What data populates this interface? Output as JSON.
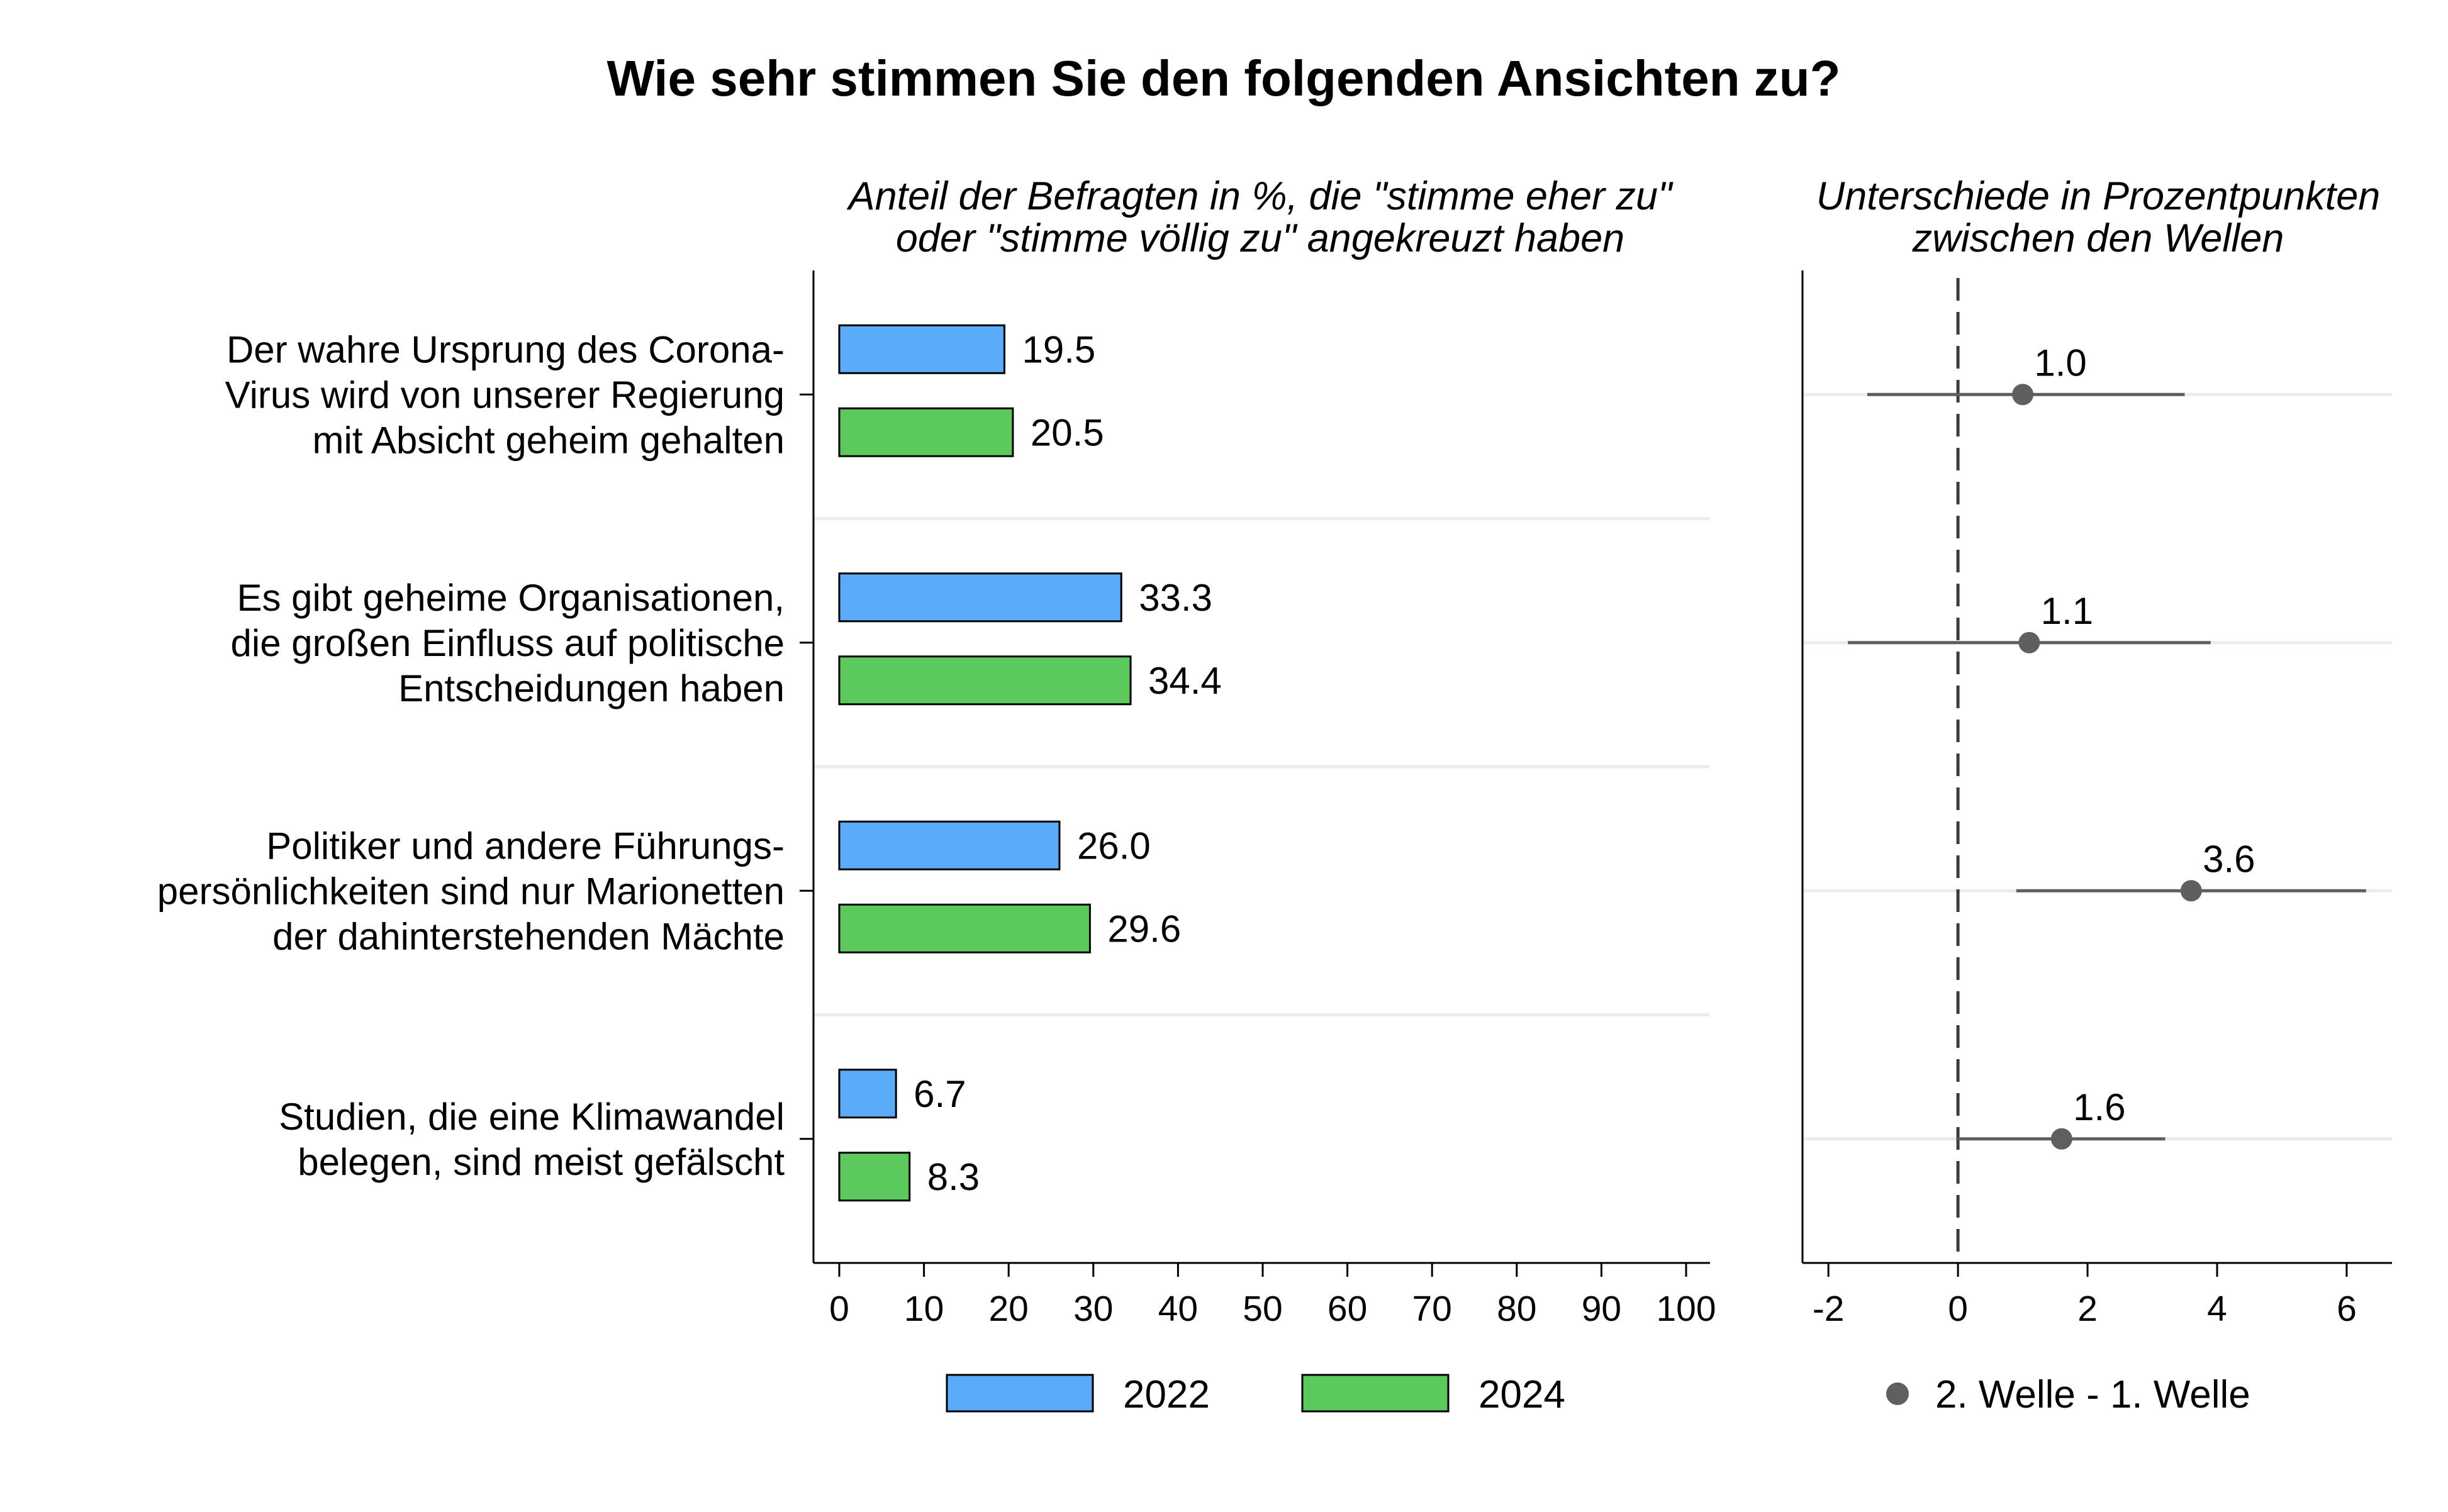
{
  "chart_data": {
    "type": "bar",
    "title": "Wie sehr stimmen Sie den folgenden Ansichten zu?",
    "panels": [
      {
        "type": "bar",
        "orientation": "horizontal",
        "subtitle_lines": [
          "Anteil der Befragten in %, die \"stimme eher zu\"",
          "oder \"stimme völlig zu\" angekreuzt haben"
        ],
        "categories": [
          [
            "Der wahre Ursprung des Corona-",
            "Virus wird von unserer Regierung",
            "mit Absicht geheim gehalten"
          ],
          [
            "Es gibt geheime Organisationen,",
            "die großen Einfluss auf politische",
            "Entscheidungen haben"
          ],
          [
            "Politiker und andere Führungs-",
            "persönlichkeiten sind nur Marionetten",
            "der dahinterstehenden Mächte"
          ],
          [
            "Studien, die eine Klimawandel",
            "belegen, sind meist gefälscht"
          ]
        ],
        "series": [
          {
            "name": "2022",
            "color": "#5aacfa",
            "values": [
              19.5,
              33.3,
              26.0,
              6.7
            ],
            "labels": [
              "19.5",
              "33.3",
              "26.0",
              "6.7"
            ]
          },
          {
            "name": "2024",
            "color": "#5bc95b",
            "values": [
              20.5,
              34.4,
              29.6,
              8.3
            ],
            "labels": [
              "20.5",
              "34.4",
              "29.6",
              "8.3"
            ]
          }
        ],
        "xlim": [
          0,
          100
        ],
        "xticks": [
          0,
          10,
          20,
          30,
          40,
          50,
          60,
          70,
          80,
          90,
          100
        ]
      },
      {
        "type": "scatter",
        "subtitle_lines": [
          "Unterschiede in Prozentpunkten",
          "zwischen den Wellen"
        ],
        "series": [
          {
            "name": "2. Welle - 1. Welle",
            "color": "#5f5f5f",
            "values": [
              1.0,
              1.1,
              3.6,
              1.6
            ],
            "labels": [
              "1.0",
              "1.1",
              "3.6",
              "1.6"
            ],
            "ci_low": [
              -1.4,
              -1.7,
              0.9,
              0.0
            ],
            "ci_high": [
              3.5,
              3.9,
              6.3,
              3.2
            ]
          }
        ],
        "reference_line": 0,
        "xlim": [
          -2.4,
          6.7
        ],
        "xticks": [
          -2,
          0,
          2,
          4,
          6
        ],
        "xtick_labels": [
          "-2",
          "0",
          "2",
          "4",
          "6"
        ]
      }
    ],
    "legend": {
      "position": "bottom",
      "items": [
        {
          "label": "2022",
          "color": "#5aacfa",
          "kind": "box"
        },
        {
          "label": "2024",
          "color": "#5bc95b",
          "kind": "box"
        },
        {
          "label": "2. Welle - 1. Welle",
          "color": "#5f5f5f",
          "kind": "dot"
        }
      ]
    }
  }
}
